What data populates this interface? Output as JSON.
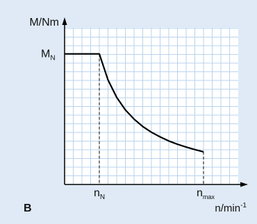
{
  "panel_label": "B",
  "colors": {
    "background": "#dfeaf6",
    "plot_area": "#ffffff",
    "grid": "#b9d3ec",
    "line": "#000000"
  },
  "chart_data": {
    "type": "line",
    "title": "",
    "ylabel": "M/Nm",
    "xlabel": "n/min",
    "xlabel_exponent": "-1",
    "x_ticks": [
      {
        "value": 1,
        "main": "n",
        "sub": "N"
      },
      {
        "value": 4,
        "main": "n",
        "sub": "max"
      }
    ],
    "y_ticks": [
      {
        "value": 1,
        "main": "M",
        "sub": "N"
      }
    ],
    "xlim": [
      0,
      5
    ],
    "ylim": [
      0,
      1.2
    ],
    "grid": true,
    "series": [
      {
        "x": [
          0,
          1,
          1.25,
          1.5,
          1.75,
          2,
          2.25,
          2.5,
          2.75,
          3,
          3.25,
          3.5,
          3.75,
          4
        ],
        "y": [
          1,
          1,
          0.8,
          0.667,
          0.571,
          0.5,
          0.444,
          0.4,
          0.364,
          0.333,
          0.308,
          0.286,
          0.267,
          0.25
        ]
      }
    ],
    "guide_lines": [
      {
        "x": 1,
        "y_from": 0,
        "y_to": 1,
        "style": "dashed"
      },
      {
        "x": 4,
        "y_from": 0,
        "y_to": 0.25,
        "style": "dashed"
      }
    ]
  }
}
